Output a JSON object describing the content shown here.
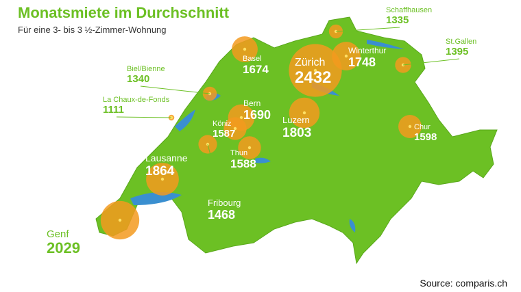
{
  "title": "Monatsmiete im Durchschnitt",
  "subtitle": "Für eine 3- bis 3 ½-Zimmer-Wohnung",
  "cities": [
    {
      "name": "Genf",
      "value": 2029
    },
    {
      "name": "Lausanne",
      "value": 1864
    },
    {
      "name": "Fribourg",
      "value": 1468
    },
    {
      "name": "Biel/Bienne",
      "value": 1340
    },
    {
      "name": "La Chaux-de-Fonds",
      "value": 1111
    },
    {
      "name": "Basel",
      "value": 1674
    },
    {
      "name": "Bern",
      "value": 1690
    },
    {
      "name": "Köniz",
      "value": 1587
    },
    {
      "name": "Thun",
      "value": 1588
    },
    {
      "name": "Luzern",
      "value": 1803
    },
    {
      "name": "Zürich",
      "value": 2432
    },
    {
      "name": "Winterthur",
      "value": 1748
    },
    {
      "name": "Schaffhausen",
      "value": 1335
    },
    {
      "name": "St.Gallen",
      "value": 1395
    },
    {
      "name": "Chur",
      "value": 1598
    }
  ],
  "source": "Source: comparis.ch"
}
